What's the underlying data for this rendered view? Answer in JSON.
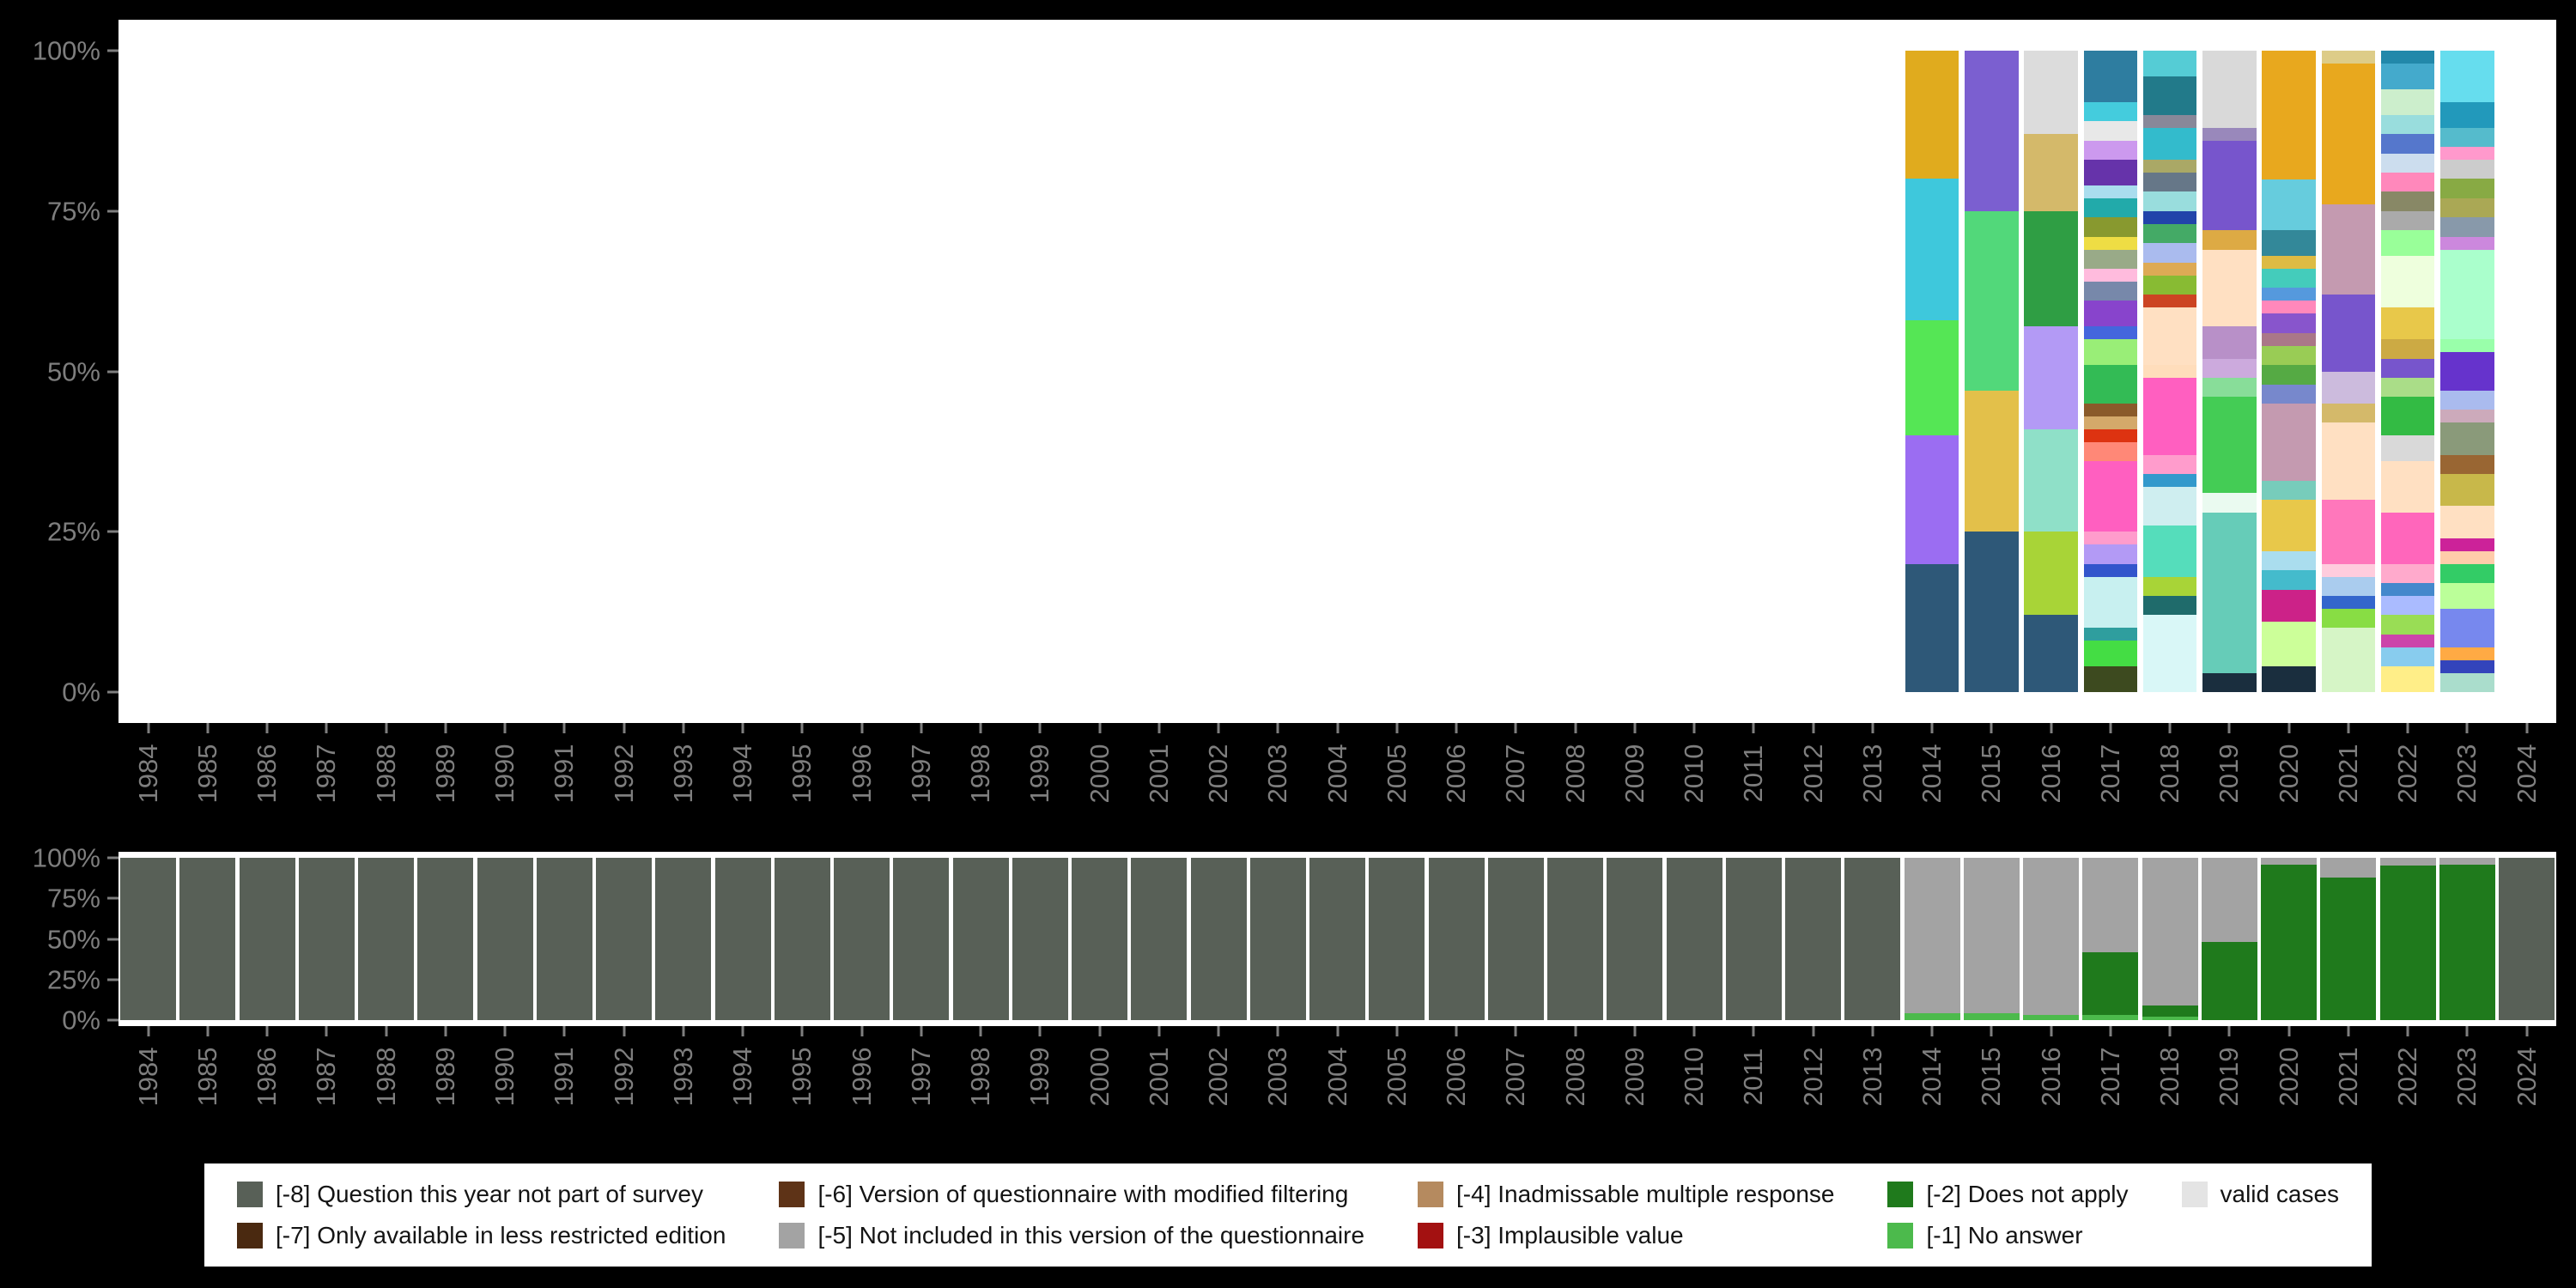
{
  "page": {
    "background": "#000000",
    "plot_background": "#ffffff",
    "axis_text_color": "#7e7e7e"
  },
  "axes": {
    "years": [
      "1984",
      "1985",
      "1986",
      "1987",
      "1988",
      "1989",
      "1990",
      "1991",
      "1992",
      "1993",
      "1994",
      "1995",
      "1996",
      "1997",
      "1998",
      "1999",
      "2000",
      "2001",
      "2002",
      "2003",
      "2004",
      "2005",
      "2006",
      "2007",
      "2008",
      "2009",
      "2010",
      "2011",
      "2012",
      "2013",
      "2014",
      "2015",
      "2016",
      "2017",
      "2018",
      "2019",
      "2020",
      "2021",
      "2022",
      "2023",
      "2024"
    ],
    "top_yticks": [
      [
        "100%",
        100
      ],
      [
        "75%",
        75
      ],
      [
        "50%",
        50
      ],
      [
        "25%",
        25
      ],
      [
        "0%",
        0
      ]
    ],
    "bottom_yticks": [
      [
        "100%",
        100
      ],
      [
        "75%",
        75
      ],
      [
        "50%",
        50
      ],
      [
        "25%",
        25
      ],
      [
        "0%",
        0
      ]
    ]
  },
  "colors": {
    "-8": "#586057",
    "-7": "#4a2910",
    "-6": "#5e3317",
    "-5": "#a3a3a3",
    "-4": "#b58a5f",
    "-3": "#a31111",
    "-2": "#1f7a1c",
    "-1": "#4cba4c",
    "valid": "#e4e4e4"
  },
  "legend": {
    "entries": [
      {
        "key": "-8",
        "label": "[-8] Question this year not part of survey",
        "color": "#586057"
      },
      {
        "key": "-7",
        "label": "[-7] Only available in less restricted edition",
        "color": "#4a2910"
      },
      {
        "key": "-6",
        "label": "[-6] Version of questionnaire with modified filtering",
        "color": "#5e3317"
      },
      {
        "key": "-5",
        "label": "[-5] Not included in this version of the questionnaire",
        "color": "#a3a3a3"
      },
      {
        "key": "-4",
        "label": "[-4] Inadmissable multiple response",
        "color": "#b58a5f"
      },
      {
        "key": "-3",
        "label": "[-3] Implausible value",
        "color": "#a31111"
      },
      {
        "key": "-2",
        "label": "[-2] Does not apply",
        "color": "#1f7a1c"
      },
      {
        "key": "-1",
        "label": "[-1] No answer",
        "color": "#4cba4c"
      },
      {
        "key": "valid",
        "label": "valid cases",
        "color": "#e4e4e4"
      }
    ]
  },
  "chart_data": [
    {
      "id": "value-distribution",
      "type": "bar",
      "stacked": true,
      "units": "percent",
      "title": "",
      "xlabel": "",
      "ylabel": "",
      "ylim": [
        0,
        100
      ],
      "grid": false,
      "legend_position": "none",
      "categories": [
        "1984",
        "1985",
        "1986",
        "1987",
        "1988",
        "1989",
        "1990",
        "1991",
        "1992",
        "1993",
        "1994",
        "1995",
        "1996",
        "1997",
        "1998",
        "1999",
        "2000",
        "2001",
        "2002",
        "2003",
        "2004",
        "2005",
        "2006",
        "2007",
        "2008",
        "2009",
        "2010",
        "2011",
        "2012",
        "2013",
        "2014",
        "2015",
        "2016",
        "2017",
        "2018",
        "2019",
        "2020",
        "2021",
        "2022",
        "2023",
        "2024"
      ],
      "default_segments": null,
      "bars": [
        {
          "year": "2014",
          "segments": [
            [
              "#2e5878",
              20
            ],
            [
              "#9b6df2",
              20
            ],
            [
              "#55e655",
              18
            ],
            [
              "#3ec8dc",
              22
            ],
            [
              "#e0ab1e",
              20
            ]
          ]
        },
        {
          "year": "2015",
          "segments": [
            [
              "#2e5878",
              25
            ],
            [
              "#e3c04a",
              22
            ],
            [
              "#52d87a",
              28
            ],
            [
              "#7b5fd0",
              25
            ]
          ]
        },
        {
          "year": "2016",
          "segments": [
            [
              "#2e5878",
              12
            ],
            [
              "#a8d437",
              13
            ],
            [
              "#8fe0c8",
              16
            ],
            [
              "#b39af5",
              16
            ],
            [
              "#2f9e44",
              18
            ],
            [
              "#d4b96a",
              12
            ],
            [
              "#dcdcdc",
              13
            ]
          ]
        },
        {
          "year": "2017",
          "segments": [
            [
              "#3d4a1f",
              4
            ],
            [
              "#44dd44",
              4
            ],
            [
              "#2f9e9e",
              2
            ],
            [
              "#c8f0f0",
              8
            ],
            [
              "#3355cc",
              2
            ],
            [
              "#b39af5",
              3
            ],
            [
              "#ff9ccc",
              2
            ],
            [
              "#ff5fc0",
              11
            ],
            [
              "#ff8877",
              3
            ],
            [
              "#dd3311",
              2
            ],
            [
              "#d4a96a",
              2
            ],
            [
              "#8a5a2a",
              2
            ],
            [
              "#33bb55",
              6
            ],
            [
              "#99ee77",
              4
            ],
            [
              "#4466dd",
              2
            ],
            [
              "#8844cc",
              4
            ],
            [
              "#7788aa",
              3
            ],
            [
              "#ffbbdd",
              2
            ],
            [
              "#99aa88",
              3
            ],
            [
              "#eedd44",
              2
            ],
            [
              "#88992f",
              3
            ],
            [
              "#22aaaa",
              3
            ],
            [
              "#aaddee",
              2
            ],
            [
              "#6633aa",
              4
            ],
            [
              "#cc99ee",
              3
            ],
            [
              "#e8e8e8",
              3
            ],
            [
              "#44ccdd",
              3
            ],
            [
              "#2e7da0",
              8
            ]
          ]
        },
        {
          "year": "2018",
          "segments": [
            [
              "#d9f7f7",
              12
            ],
            [
              "#1f6b6b",
              3
            ],
            [
              "#a8d437",
              3
            ],
            [
              "#55ddbb",
              8
            ],
            [
              "#cfeef0",
              6
            ],
            [
              "#3399cc",
              2
            ],
            [
              "#ff9ccc",
              3
            ],
            [
              "#ff5fc0",
              12
            ],
            [
              "#ffddbb",
              2
            ],
            [
              "#ffe0c2",
              9
            ],
            [
              "#cc4422",
              2
            ],
            [
              "#88bb33",
              3
            ],
            [
              "#ddaa55",
              2
            ],
            [
              "#aabbee",
              3
            ],
            [
              "#44aa66",
              3
            ],
            [
              "#2244aa",
              2
            ],
            [
              "#99dddd",
              3
            ],
            [
              "#667788",
              3
            ],
            [
              "#aaa866",
              2
            ],
            [
              "#33bbcc",
              5
            ],
            [
              "#888899",
              2
            ],
            [
              "#227a8a",
              6
            ],
            [
              "#55ccd5",
              4
            ]
          ]
        },
        {
          "year": "2019",
          "segments": [
            [
              "#1a2e3e",
              3
            ],
            [
              "#66ccb8",
              25
            ],
            [
              "#eafaf0",
              3
            ],
            [
              "#44cc55",
              15
            ],
            [
              "#88dd99",
              3
            ],
            [
              "#ccaadd",
              3
            ],
            [
              "#b890c8",
              5
            ],
            [
              "#ffe0c2",
              12
            ],
            [
              "#ddaa44",
              3
            ],
            [
              "#7755cc",
              14
            ],
            [
              "#9988bb",
              2
            ],
            [
              "#d9d9d9",
              12
            ]
          ]
        },
        {
          "year": "2020",
          "segments": [
            [
              "#1a2e3e",
              4
            ],
            [
              "#ccff99",
              7
            ],
            [
              "#cc2288",
              5
            ],
            [
              "#44bbcc",
              3
            ],
            [
              "#aaddee",
              3
            ],
            [
              "#e8c84a",
              8
            ],
            [
              "#77ccbb",
              3
            ],
            [
              "#c49ab0",
              12
            ],
            [
              "#7788cc",
              3
            ],
            [
              "#55aa44",
              3
            ],
            [
              "#99cc55",
              3
            ],
            [
              "#aa7788",
              2
            ],
            [
              "#8855cc",
              3
            ],
            [
              "#ff88bb",
              2
            ],
            [
              "#5599dd",
              2
            ],
            [
              "#44ccbb",
              3
            ],
            [
              "#ddbb44",
              2
            ],
            [
              "#338899",
              4
            ],
            [
              "#66ccdd",
              8
            ],
            [
              "#e8a81e",
              20
            ]
          ]
        },
        {
          "year": "2021",
          "segments": [
            [
              "#d6f5c6",
              10
            ],
            [
              "#88dd44",
              3
            ],
            [
              "#3366cc",
              2
            ],
            [
              "#aaccee",
              3
            ],
            [
              "#ffccdd",
              2
            ],
            [
              "#ff77bb",
              10
            ],
            [
              "#ffe0c2",
              12
            ],
            [
              "#d4b96a",
              3
            ],
            [
              "#ccbbdd",
              5
            ],
            [
              "#7755cc",
              12
            ],
            [
              "#c49ab0",
              14
            ],
            [
              "#e8a81e",
              22
            ],
            [
              "#ddcc88",
              2
            ]
          ]
        },
        {
          "year": "2022",
          "segments": [
            [
              "#ffee88",
              4
            ],
            [
              "#88ccee",
              3
            ],
            [
              "#cc44aa",
              2
            ],
            [
              "#99dd55",
              3
            ],
            [
              "#aabbff",
              3
            ],
            [
              "#4488cc",
              2
            ],
            [
              "#ffaacc",
              3
            ],
            [
              "#ff66bb",
              8
            ],
            [
              "#ffe0c2",
              8
            ],
            [
              "#d9d9d9",
              4
            ],
            [
              "#33bb44",
              6
            ],
            [
              "#aadd88",
              3
            ],
            [
              "#7755cc",
              3
            ],
            [
              "#ccaa44",
              3
            ],
            [
              "#e8c84a",
              5
            ],
            [
              "#eeffdd",
              8
            ],
            [
              "#99ff99",
              4
            ],
            [
              "#aaaaaa",
              3
            ],
            [
              "#888866",
              3
            ],
            [
              "#ff88bb",
              3
            ],
            [
              "#ccddee",
              3
            ],
            [
              "#5577cc",
              3
            ],
            [
              "#99dddd",
              3
            ],
            [
              "#cceecc",
              4
            ],
            [
              "#44aacc",
              4
            ],
            [
              "#2288aa",
              2
            ]
          ]
        },
        {
          "year": "2023",
          "segments": [
            [
              "#aaddcc",
              3
            ],
            [
              "#3344bb",
              2
            ],
            [
              "#ffaa44",
              2
            ],
            [
              "#7788ee",
              6
            ],
            [
              "#bbff99",
              4
            ],
            [
              "#33cc66",
              3
            ],
            [
              "#ffccaa",
              2
            ],
            [
              "#cc2299",
              2
            ],
            [
              "#ffe0c2",
              5
            ],
            [
              "#c8b84a",
              5
            ],
            [
              "#996633",
              3
            ],
            [
              "#8a9a7a",
              5
            ],
            [
              "#ccaabb",
              2
            ],
            [
              "#aabbee",
              3
            ],
            [
              "#6633cc",
              6
            ],
            [
              "#99ffaa",
              2
            ],
            [
              "#aaffcc",
              14
            ],
            [
              "#cc88dd",
              2
            ],
            [
              "#8899aa",
              3
            ],
            [
              "#aaa855",
              3
            ],
            [
              "#88aa44",
              3
            ],
            [
              "#cccccc",
              3
            ],
            [
              "#ff99cc",
              2
            ],
            [
              "#55bbcc",
              3
            ],
            [
              "#2299bb",
              4
            ],
            [
              "#66ddee",
              8
            ]
          ]
        }
      ]
    },
    {
      "id": "missing-values-availability",
      "type": "bar",
      "stacked": true,
      "units": "percent",
      "title": "",
      "xlabel": "",
      "ylabel": "",
      "ylim": [
        0,
        100
      ],
      "grid": false,
      "legend_position": "bottom",
      "categories": [
        "1984",
        "1985",
        "1986",
        "1987",
        "1988",
        "1989",
        "1990",
        "1991",
        "1992",
        "1993",
        "1994",
        "1995",
        "1996",
        "1997",
        "1998",
        "1999",
        "2000",
        "2001",
        "2002",
        "2003",
        "2004",
        "2005",
        "2006",
        "2007",
        "2008",
        "2009",
        "2010",
        "2011",
        "2012",
        "2013",
        "2014",
        "2015",
        "2016",
        "2017",
        "2018",
        "2019",
        "2020",
        "2021",
        "2022",
        "2023",
        "2024"
      ],
      "default_segments": [
        [
          "-8",
          100
        ]
      ],
      "bars": [
        {
          "year": "2014",
          "segments": [
            [
              "-1",
              4
            ],
            [
              "-5",
              96
            ]
          ]
        },
        {
          "year": "2015",
          "segments": [
            [
              "-1",
              4
            ],
            [
              "-5",
              96
            ]
          ]
        },
        {
          "year": "2016",
          "segments": [
            [
              "-1",
              3
            ],
            [
              "-5",
              97
            ]
          ]
        },
        {
          "year": "2017",
          "segments": [
            [
              "-1",
              3
            ],
            [
              "-2",
              39
            ],
            [
              "-5",
              58
            ]
          ]
        },
        {
          "year": "2018",
          "segments": [
            [
              "-1",
              2
            ],
            [
              "-2",
              7
            ],
            [
              "-5",
              91
            ]
          ]
        },
        {
          "year": "2019",
          "segments": [
            [
              "-2",
              48
            ],
            [
              "-5",
              52
            ]
          ]
        },
        {
          "year": "2020",
          "segments": [
            [
              "-2",
              96
            ],
            [
              "-5",
              4
            ]
          ]
        },
        {
          "year": "2021",
          "segments": [
            [
              "-2",
              88
            ],
            [
              "-5",
              12
            ]
          ]
        },
        {
          "year": "2022",
          "segments": [
            [
              "-2",
              95
            ],
            [
              "-5",
              5
            ]
          ]
        },
        {
          "year": "2023",
          "segments": [
            [
              "-2",
              96
            ],
            [
              "-5",
              4
            ]
          ]
        }
      ]
    }
  ]
}
